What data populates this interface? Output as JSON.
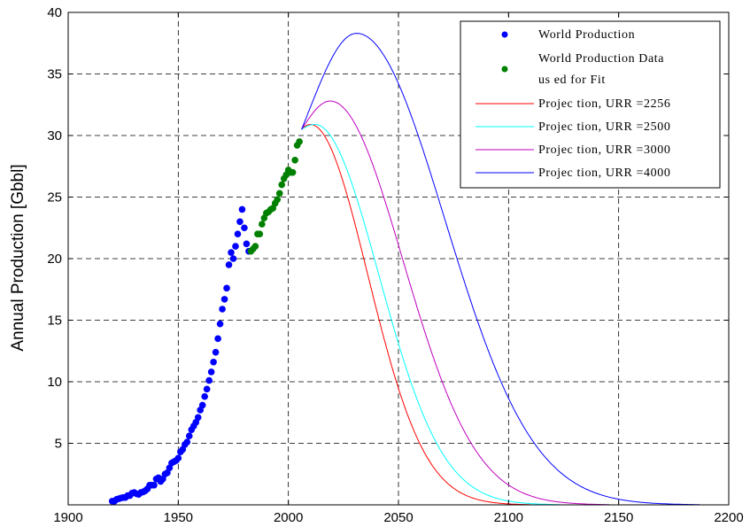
{
  "chart_data": {
    "type": "line",
    "title": "",
    "xlabel": "",
    "ylabel": "Annual Production [Gbbl]",
    "xlim": [
      1900,
      2200
    ],
    "ylim": [
      0,
      40
    ],
    "xticks": [
      1900,
      1950,
      2000,
      2050,
      2100,
      2150,
      2200
    ],
    "yticks": [
      5,
      10,
      15,
      20,
      25,
      30,
      35,
      40
    ],
    "grid": true,
    "legend_position": "top-right",
    "series": [
      {
        "name": "World Production",
        "kind": "scatter",
        "color": "#0000ff",
        "x": [
          1920,
          1921,
          1922,
          1923,
          1924,
          1925,
          1926,
          1927,
          1928,
          1929,
          1930,
          1931,
          1932,
          1933,
          1934,
          1935,
          1936,
          1937,
          1938,
          1939,
          1940,
          1941,
          1942,
          1943,
          1944,
          1945,
          1946,
          1947,
          1948,
          1949,
          1950,
          1951,
          1952,
          1953,
          1954,
          1955,
          1956,
          1957,
          1958,
          1959,
          1960,
          1961,
          1962,
          1963,
          1964,
          1965,
          1966,
          1967,
          1968,
          1969,
          1970,
          1971,
          1972,
          1973,
          1974,
          1975,
          1976,
          1977,
          1978,
          1979,
          1980,
          1981,
          1982
        ],
        "y": [
          0.3,
          0.3,
          0.45,
          0.5,
          0.55,
          0.6,
          0.6,
          0.75,
          0.75,
          0.95,
          1.0,
          0.9,
          0.85,
          1.0,
          1.05,
          1.15,
          1.3,
          1.6,
          1.6,
          1.6,
          2.1,
          2.2,
          1.9,
          2.1,
          2.5,
          2.6,
          3.0,
          3.4,
          3.5,
          3.6,
          3.8,
          4.3,
          4.5,
          4.9,
          5.1,
          5.6,
          6.1,
          6.4,
          6.7,
          7.1,
          7.7,
          8.1,
          8.8,
          9.4,
          10.1,
          10.8,
          11.6,
          12.4,
          13.5,
          14.7,
          15.9,
          16.7,
          17.6,
          19.5,
          20.5,
          20.0,
          21.0,
          22.0,
          23.0,
          24.0,
          22.5,
          21.2,
          20.6
        ]
      },
      {
        "name": "World Production Data used for Fit",
        "kind": "scatter",
        "color": "#008000",
        "x": [
          1983,
          1984,
          1985,
          1986,
          1987,
          1988,
          1989,
          1990,
          1991,
          1992,
          1993,
          1994,
          1995,
          1996,
          1997,
          1998,
          1999,
          2000,
          2001,
          2002,
          2003,
          2004,
          2005
        ],
        "y": [
          20.6,
          20.8,
          21.0,
          22.0,
          22.0,
          22.8,
          23.3,
          23.7,
          23.8,
          24.0,
          24.1,
          24.5,
          24.8,
          25.3,
          26.0,
          26.5,
          26.8,
          27.2,
          27.0,
          27.0,
          28.0,
          29.2,
          29.5
        ]
      },
      {
        "name": "Projection, URR =2256",
        "kind": "line",
        "color": "#ff0000",
        "start_x": 2006,
        "start_y": 30.5,
        "peak_x": 2010,
        "peak_y": 30.9,
        "sigma_rise": 8,
        "sigma_fall": 26
      },
      {
        "name": "Projection, URR =2500",
        "kind": "line",
        "color": "#00ffff",
        "start_x": 2006,
        "start_y": 30.5,
        "peak_x": 2012,
        "peak_y": 30.9,
        "sigma_rise": 7,
        "sigma_fall": 29
      },
      {
        "name": "Projection, URR =3000",
        "kind": "line",
        "color": "#bf00bf",
        "start_x": 2006,
        "start_y": 30.5,
        "peak_x": 2019,
        "peak_y": 32.8,
        "sigma_rise": 13,
        "sigma_fall": 33
      },
      {
        "name": "Projection, URR =4000",
        "kind": "line",
        "color": "#0000ff",
        "start_x": 2006,
        "start_y": 30.5,
        "peak_x": 2031,
        "peak_y": 38.3,
        "sigma_rise": 22,
        "sigma_fall": 40
      }
    ],
    "legend_lines": [
      [
        "World Production"
      ],
      [
        "World Production Data",
        "us ed for Fit"
      ],
      [
        "Projec tion, URR =2256"
      ],
      [
        "Projec tion, URR =2500"
      ],
      [
        "Projec tion, URR =3000"
      ],
      [
        "Projec tion, URR =4000"
      ]
    ]
  }
}
